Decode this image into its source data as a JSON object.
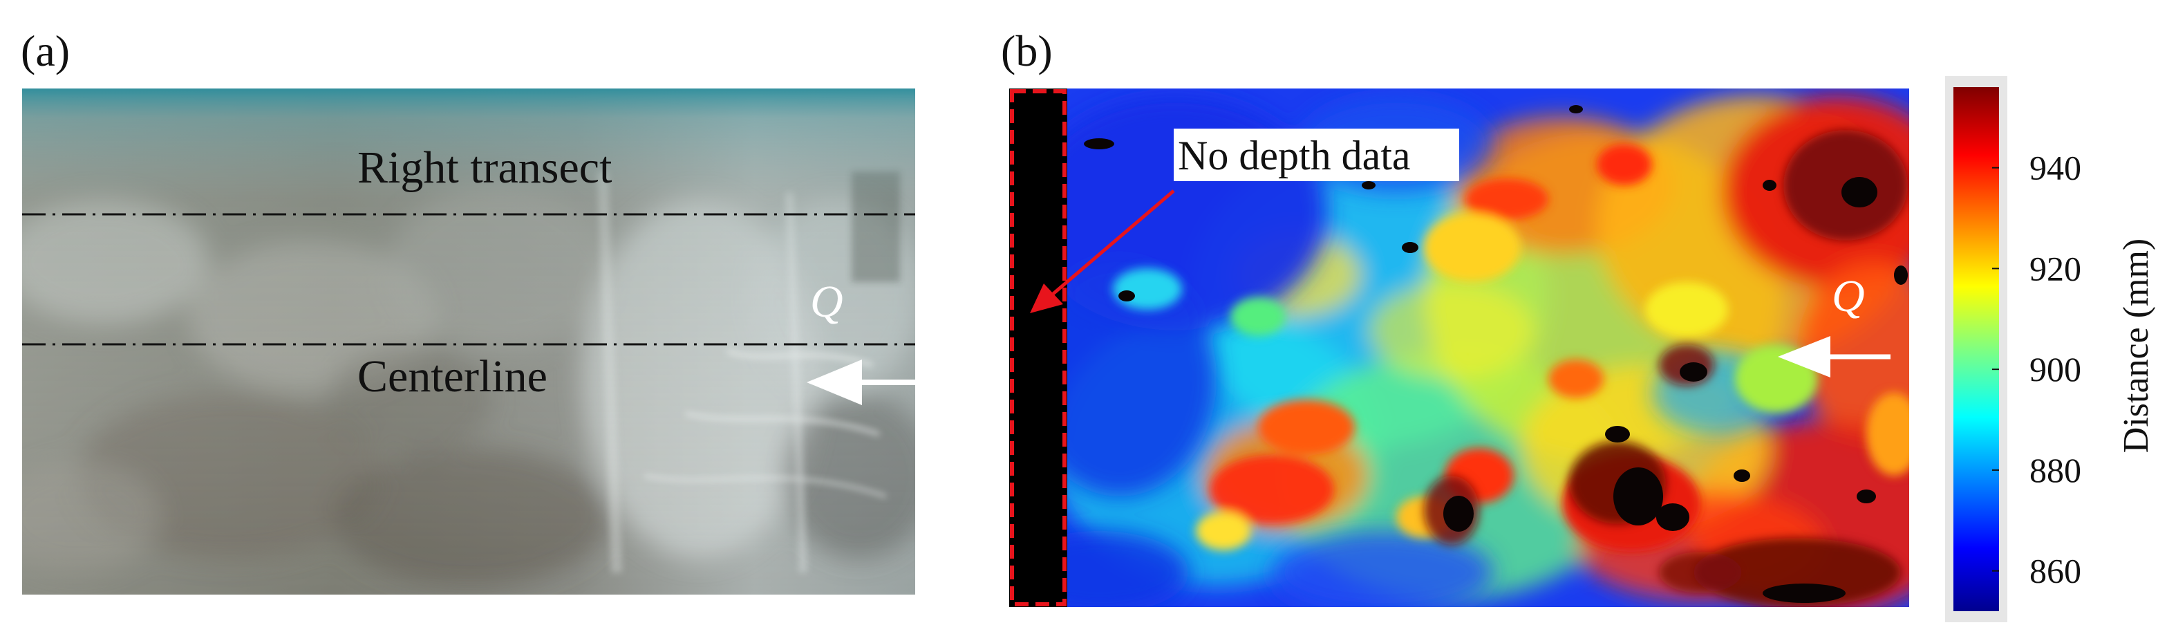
{
  "panel_a": {
    "label": "(a)",
    "annotations": {
      "right_transect": "Right transect",
      "centerline": "Centerline",
      "flow_symbol": "Q"
    }
  },
  "panel_b": {
    "label": "(b)",
    "annotations": {
      "no_depth_data": "No depth data",
      "flow_symbol": "Q"
    },
    "colorbar": {
      "title": "Distance (mm)",
      "ticks": [
        "940",
        "920",
        "900",
        "880",
        "860"
      ],
      "range": [
        852,
        956
      ],
      "colormap": "jet"
    }
  },
  "colors": {
    "transect_lines": "#111111",
    "no_data_box": "#e8141c",
    "callout_arrow": "#e8141c",
    "flow_arrow": "#ffffff"
  },
  "icons": {
    "flow_arrow": "left-arrow-icon",
    "callout_arrow": "down-left-arrow-icon"
  }
}
